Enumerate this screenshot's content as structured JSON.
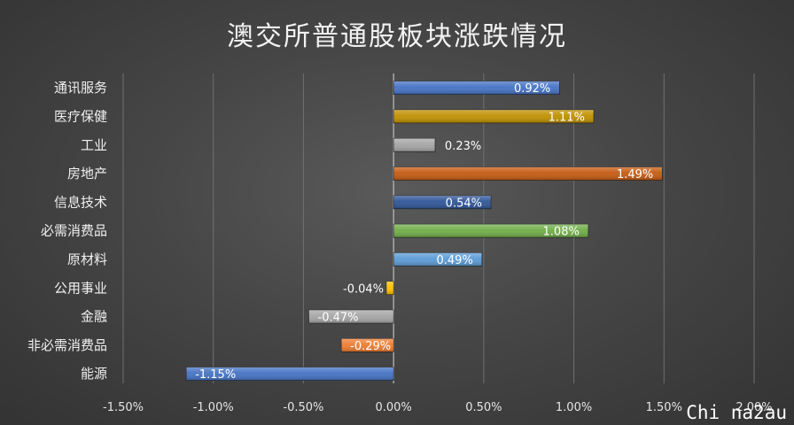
{
  "chart_data": {
    "type": "bar",
    "orientation": "horizontal",
    "title": "澳交所普通股板块涨跌情况",
    "xlabel": "",
    "ylabel": "",
    "xlim": [
      -0.015,
      0.02
    ],
    "x_ticks": [
      -0.015,
      -0.01,
      -0.005,
      0,
      0.005,
      0.01,
      0.015,
      0.02
    ],
    "x_tick_labels": [
      "-1.50%",
      "-1.00%",
      "-0.50%",
      "0.00%",
      "0.50%",
      "1.00%",
      "1.50%",
      "2.00%"
    ],
    "grid": true,
    "legend": "none",
    "categories": [
      "通讯服务",
      "医疗保健",
      "工业",
      "房地产",
      "信息技术",
      "必需消费品",
      "原材料",
      "公用事业",
      "金融",
      "非必需消费品",
      "能源"
    ],
    "values": [
      0.0092,
      0.0111,
      0.0023,
      0.0149,
      0.0054,
      0.0108,
      0.0049,
      -0.0004,
      -0.0047,
      -0.0029,
      -0.0115
    ],
    "data_labels": [
      "0.92%",
      "1.11%",
      "0.23%",
      "1.49%",
      "0.54%",
      "1.08%",
      "0.49%",
      "-0.04%",
      "-0.47%",
      "-0.29%",
      "-1.15%"
    ],
    "colors": [
      "#4472c4",
      "#bf9000",
      "#a5a5a5",
      "#c55a11",
      "#2f5597",
      "#70ad47",
      "#5b9bd5",
      "#ffc000",
      "#a5a5a5",
      "#ed7d31",
      "#4472c4"
    ]
  },
  "watermark": "Chi na2au"
}
